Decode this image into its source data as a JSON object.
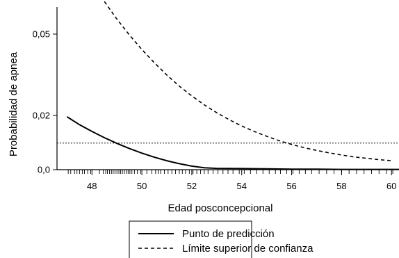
{
  "chart_data": {
    "type": "line",
    "title": "",
    "xlabel": "Edad posconcepcional",
    "ylabel": "Probabilidad de apnea",
    "xlim": [
      46.6,
      60.3
    ],
    "ylim": [
      0.0,
      0.06
    ],
    "x_ticks": [
      48,
      50,
      52,
      54,
      56,
      58,
      60
    ],
    "x_tick_labels": [
      "48",
      "50",
      "52",
      "54",
      "56",
      "58",
      "60"
    ],
    "y_ticks": [
      0.0,
      0.02,
      0.05
    ],
    "y_tick_labels": [
      "0,0",
      "0,02",
      "0,05"
    ],
    "grid": false,
    "legend_position": "bottom-center",
    "series": [
      {
        "name": "Punto de predicción",
        "style": "solid",
        "x": [
          47.0,
          47.5,
          48.0,
          48.5,
          49.0,
          49.5,
          50.0,
          50.5,
          51.0,
          51.5,
          52.0,
          52.5,
          53.0,
          54.0,
          55.0,
          56.0,
          57.0,
          58.0,
          59.0,
          60.0,
          60.3
        ],
        "y": [
          0.0195,
          0.0166,
          0.0141,
          0.0118,
          0.0097,
          0.0078,
          0.0061,
          0.0046,
          0.0033,
          0.0022,
          0.0013,
          0.0007,
          0.0005,
          0.0004,
          0.0003,
          0.0002,
          0.0002,
          0.0001,
          0.0001,
          0.0001,
          0.0001
        ]
      },
      {
        "name": "Límite superior de confianza",
        "style": "dashed",
        "x": [
          48.5,
          49.0,
          49.5,
          50.0,
          50.5,
          51.0,
          51.5,
          52.0,
          52.5,
          53.0,
          53.5,
          54.0,
          54.5,
          55.0,
          55.5,
          56.0,
          56.5,
          57.0,
          57.5,
          58.0,
          58.5,
          59.0,
          59.5,
          60.0
        ],
        "y": [
          0.062,
          0.0555,
          0.0497,
          0.0443,
          0.0394,
          0.0349,
          0.0308,
          0.0272,
          0.0239,
          0.021,
          0.0184,
          0.0161,
          0.0141,
          0.0123,
          0.0107,
          0.0093,
          0.0081,
          0.0071,
          0.0062,
          0.0054,
          0.0047,
          0.0042,
          0.0037,
          0.0033
        ]
      }
    ],
    "reference_line": {
      "y": 0.0098,
      "style": "dotted"
    },
    "rug_x": [
      47.05,
      47.15,
      47.3,
      47.4,
      47.5,
      47.62,
      47.7,
      47.83,
      47.95,
      48.3,
      48.45,
      48.55,
      48.62,
      48.7,
      48.78,
      48.85,
      48.92,
      49.0,
      49.08,
      49.15,
      49.22,
      49.3,
      49.38,
      49.45,
      49.52,
      49.6,
      49.7,
      49.82,
      49.95,
      50.2,
      50.4,
      50.55,
      50.65,
      50.75,
      50.9,
      51.05,
      51.2,
      51.35,
      51.5,
      51.62,
      51.75,
      51.9,
      52.05,
      52.2,
      52.35,
      52.5,
      52.65,
      52.85,
      53.05,
      53.25,
      53.45,
      53.65,
      53.9,
      54.1,
      54.35,
      54.6,
      54.85,
      55.1,
      55.35,
      55.55,
      55.8,
      56.05,
      56.3,
      56.55,
      56.8,
      57.1,
      57.4,
      57.7,
      58.0,
      58.3,
      58.6,
      58.9,
      59.2,
      59.5,
      59.8,
      60.05
    ]
  }
}
